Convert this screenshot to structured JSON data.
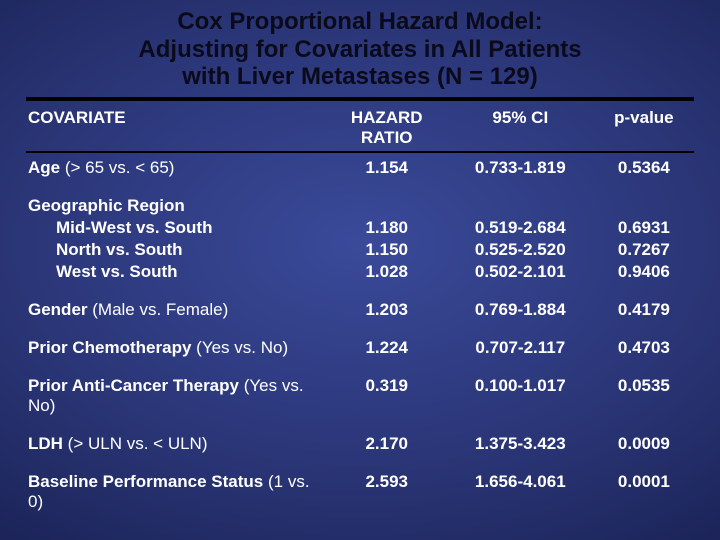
{
  "title_fontsize": 24,
  "body_fontsize": 17,
  "text_color": "#ffffff",
  "title_color": "#0a0a1a",
  "bg_gradient_inner": "#3a4a9a",
  "bg_gradient_outer": "#050720",
  "title_line1": "Cox Proportional Hazard Model:",
  "title_line2": "Adjusting for Covariates in All Patients",
  "title_line3": "with Liver Metastases (N = 129)",
  "headers": {
    "covariate": "COVARIATE",
    "hr": "HAZARD RATIO",
    "ci": "95% CI",
    "p": "p-value"
  },
  "rows": {
    "age": {
      "label_b": "Age ",
      "label_n": "(> 65 vs. < 65)",
      "hr": "1.154",
      "ci": "0.733-1.819",
      "p": "0.5364"
    },
    "geo_hdr": {
      "label_b": "Geographic Region"
    },
    "geo_mw": {
      "label_b": "Mid-West vs. South",
      "hr": "1.180",
      "ci": "0.519-2.684",
      "p": "0.6931"
    },
    "geo_n": {
      "label_b": "North vs. South",
      "hr": "1.150",
      "ci": "0.525-2.520",
      "p": "0.7267"
    },
    "geo_w": {
      "label_b": "West vs. South",
      "hr": "1.028",
      "ci": "0.502-2.101",
      "p": "0.9406"
    },
    "gender": {
      "label_b": "Gender ",
      "label_n": "(Male vs. Female)",
      "hr": "1.203",
      "ci": "0.769-1.884",
      "p": "0.4179"
    },
    "chemo": {
      "label_b": "Prior Chemotherapy ",
      "label_n": "(Yes vs. No)",
      "hr": "1.224",
      "ci": "0.707-2.117",
      "p": "0.4703"
    },
    "anti": {
      "label_b": "Prior Anti-Cancer Therapy ",
      "label_n": "(Yes vs. No)",
      "hr": "0.319",
      "ci": "0.100-1.017",
      "p": "0.0535"
    },
    "ldh": {
      "label_b": "LDH ",
      "label_n": "(> ULN vs. < ULN)",
      "hr": "2.170",
      "ci": "1.375-3.423",
      "p": "0.0009"
    },
    "bps": {
      "label_b": "Baseline Performance Status ",
      "label_n": "(1 vs. 0)",
      "hr": "2.593",
      "ci": "1.656-4.061",
      "p": "0.0001"
    }
  }
}
